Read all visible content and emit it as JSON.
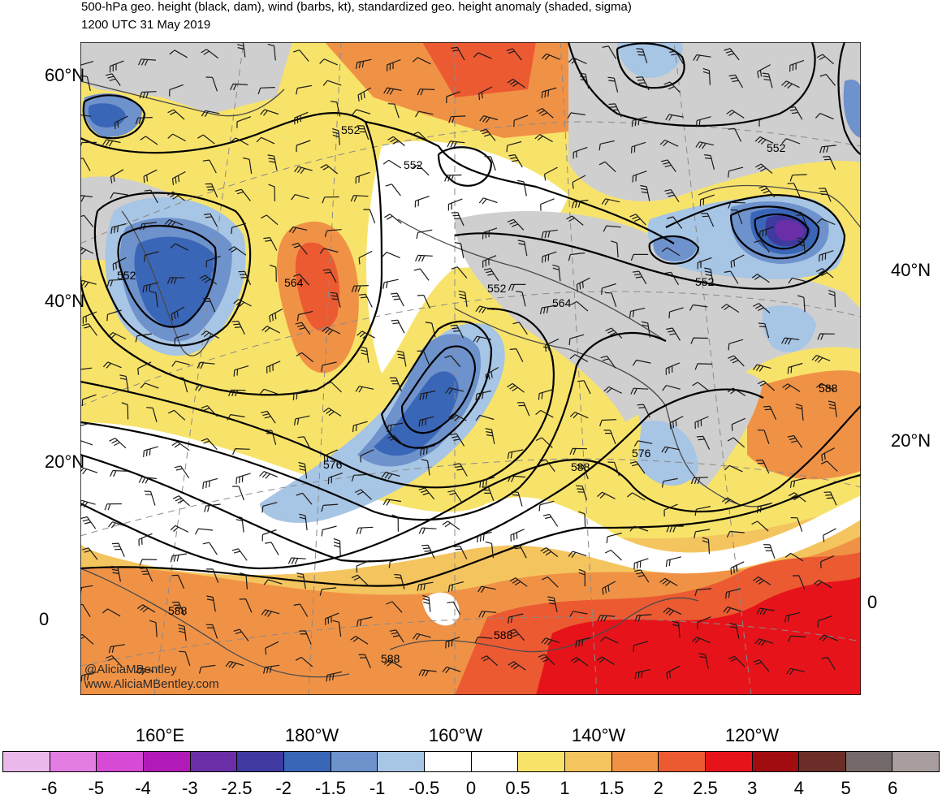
{
  "title_line1": "500-hPa geo. height (black, dam), wind (barbs, kt), standardized geo. height anomaly (shaded, sigma)",
  "title_line2": "1200 UTC 31 May 2019",
  "lat_labels_left": [
    "60°N",
    "40°N",
    "20°N",
    "0"
  ],
  "lat_labels_right": [
    "40°N",
    "20°N",
    "0"
  ],
  "lon_labels": [
    "160°E",
    "180°W",
    "160°W",
    "140°W",
    "120°W"
  ],
  "contour_labels": [
    "552",
    "552",
    "552",
    "552",
    "552",
    "552",
    "564",
    "564",
    "576",
    "576",
    "588",
    "588",
    "588",
    "588",
    "588"
  ],
  "credit_line1": "@AliciaMBentley",
  "credit_line2": "www.AliciaMBentley.com",
  "colorbar": {
    "labels": [
      "-6",
      "-5",
      "-4",
      "-3",
      "-2.5",
      "-2",
      "-1.5",
      "-1",
      "-0.5",
      "0",
      "0.5",
      "1",
      "1.5",
      "2",
      "2.5",
      "3",
      "4",
      "5",
      "6"
    ],
    "colors": [
      "#eab8ea",
      "#e27ee2",
      "#d64ad6",
      "#b21ab8",
      "#6a2ea6",
      "#3e3aa0",
      "#3a66b8",
      "#6e92cc",
      "#a7c5e4",
      "#ffffff",
      "#ffffff",
      "#f8e36a",
      "#f4c45e",
      "#f09246",
      "#ec5a32",
      "#e6141a",
      "#a00c10",
      "#6b2e28",
      "#756a6a",
      "#a99e9e"
    ]
  },
  "colors": {
    "land_gray": "#cfcfcf",
    "contour": "#000000"
  }
}
